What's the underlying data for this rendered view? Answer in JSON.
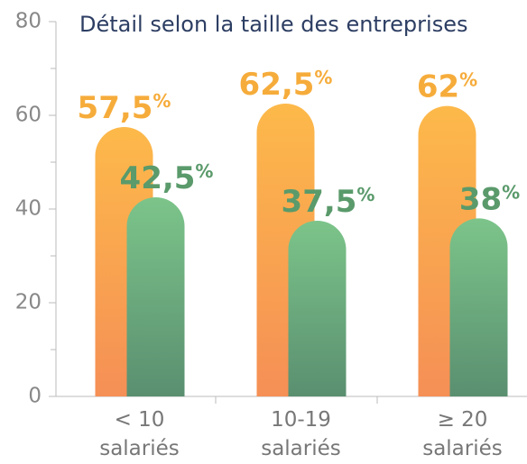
{
  "chart_data": {
    "type": "bar",
    "title": "Détail selon la taille des entreprises",
    "categories": [
      "< 10\nsalariés",
      "10-19\nsalariés",
      "≥ 20\nsalariés"
    ],
    "series": [
      {
        "color": "#f8a24f",
        "values": [
          57.5,
          62.5,
          62
        ],
        "value_labels": [
          "57,5%",
          "62,5%",
          "62%"
        ]
      },
      {
        "color": "#6aaa7b",
        "values": [
          42.5,
          37.5,
          38
        ],
        "value_labels": [
          "42,5%",
          "37,5%",
          "38%"
        ]
      }
    ],
    "ylim": [
      0,
      80
    ],
    "yticks": [
      0,
      20,
      40,
      60,
      80
    ],
    "yminorticks": [
      10,
      30,
      50,
      70
    ]
  }
}
